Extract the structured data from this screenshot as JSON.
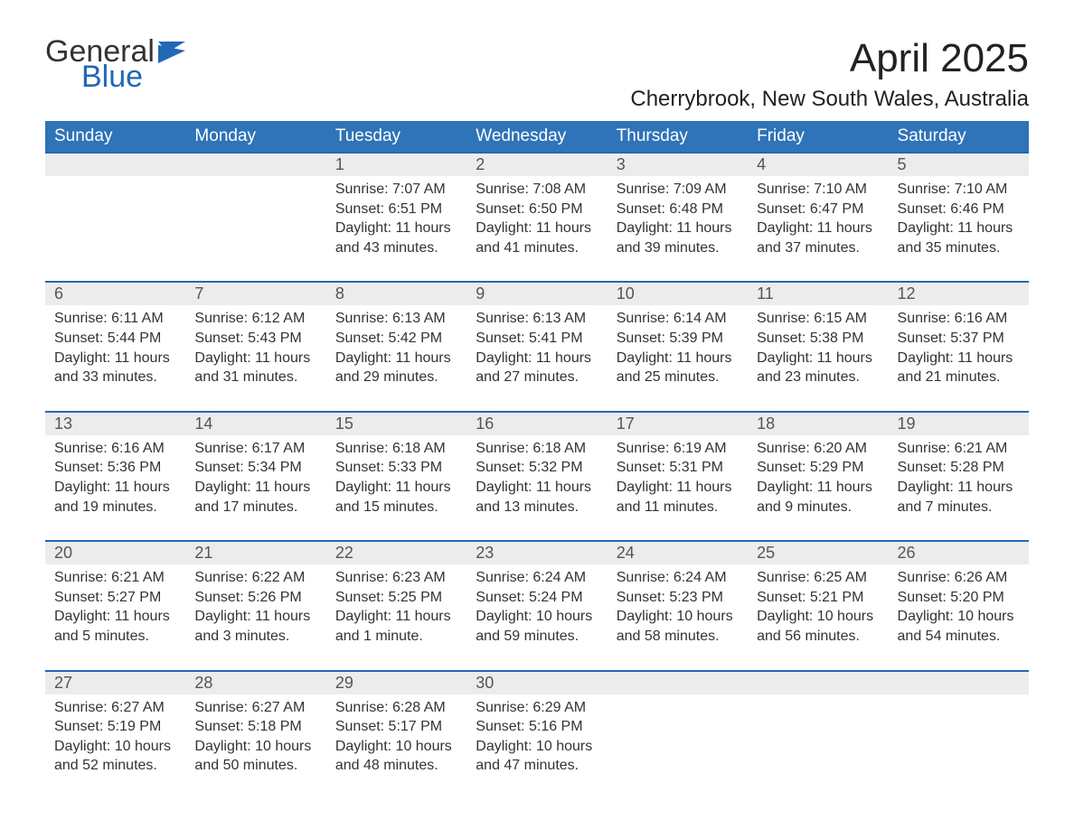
{
  "logo": {
    "general": "General",
    "blue": "Blue"
  },
  "title": "April 2025",
  "subtitle": "Cherrybrook, New South Wales, Australia",
  "colors": {
    "header_bg": "#2f73b8",
    "header_text": "#ffffff",
    "daynum_bg": "#ececec",
    "border": "#2168b5",
    "logo_accent": "#2168b5"
  },
  "day_headers": [
    "Sunday",
    "Monday",
    "Tuesday",
    "Wednesday",
    "Thursday",
    "Friday",
    "Saturday"
  ],
  "weeks": [
    [
      null,
      null,
      {
        "n": "1",
        "sr": "7:07 AM",
        "ss": "6:51 PM",
        "dl": "11 hours and 43 minutes."
      },
      {
        "n": "2",
        "sr": "7:08 AM",
        "ss": "6:50 PM",
        "dl": "11 hours and 41 minutes."
      },
      {
        "n": "3",
        "sr": "7:09 AM",
        "ss": "6:48 PM",
        "dl": "11 hours and 39 minutes."
      },
      {
        "n": "4",
        "sr": "7:10 AM",
        "ss": "6:47 PM",
        "dl": "11 hours and 37 minutes."
      },
      {
        "n": "5",
        "sr": "7:10 AM",
        "ss": "6:46 PM",
        "dl": "11 hours and 35 minutes."
      }
    ],
    [
      {
        "n": "6",
        "sr": "6:11 AM",
        "ss": "5:44 PM",
        "dl": "11 hours and 33 minutes."
      },
      {
        "n": "7",
        "sr": "6:12 AM",
        "ss": "5:43 PM",
        "dl": "11 hours and 31 minutes."
      },
      {
        "n": "8",
        "sr": "6:13 AM",
        "ss": "5:42 PM",
        "dl": "11 hours and 29 minutes."
      },
      {
        "n": "9",
        "sr": "6:13 AM",
        "ss": "5:41 PM",
        "dl": "11 hours and 27 minutes."
      },
      {
        "n": "10",
        "sr": "6:14 AM",
        "ss": "5:39 PM",
        "dl": "11 hours and 25 minutes."
      },
      {
        "n": "11",
        "sr": "6:15 AM",
        "ss": "5:38 PM",
        "dl": "11 hours and 23 minutes."
      },
      {
        "n": "12",
        "sr": "6:16 AM",
        "ss": "5:37 PM",
        "dl": "11 hours and 21 minutes."
      }
    ],
    [
      {
        "n": "13",
        "sr": "6:16 AM",
        "ss": "5:36 PM",
        "dl": "11 hours and 19 minutes."
      },
      {
        "n": "14",
        "sr": "6:17 AM",
        "ss": "5:34 PM",
        "dl": "11 hours and 17 minutes."
      },
      {
        "n": "15",
        "sr": "6:18 AM",
        "ss": "5:33 PM",
        "dl": "11 hours and 15 minutes."
      },
      {
        "n": "16",
        "sr": "6:18 AM",
        "ss": "5:32 PM",
        "dl": "11 hours and 13 minutes."
      },
      {
        "n": "17",
        "sr": "6:19 AM",
        "ss": "5:31 PM",
        "dl": "11 hours and 11 minutes."
      },
      {
        "n": "18",
        "sr": "6:20 AM",
        "ss": "5:29 PM",
        "dl": "11 hours and 9 minutes."
      },
      {
        "n": "19",
        "sr": "6:21 AM",
        "ss": "5:28 PM",
        "dl": "11 hours and 7 minutes."
      }
    ],
    [
      {
        "n": "20",
        "sr": "6:21 AM",
        "ss": "5:27 PM",
        "dl": "11 hours and 5 minutes."
      },
      {
        "n": "21",
        "sr": "6:22 AM",
        "ss": "5:26 PM",
        "dl": "11 hours and 3 minutes."
      },
      {
        "n": "22",
        "sr": "6:23 AM",
        "ss": "5:25 PM",
        "dl": "11 hours and 1 minute."
      },
      {
        "n": "23",
        "sr": "6:24 AM",
        "ss": "5:24 PM",
        "dl": "10 hours and 59 minutes."
      },
      {
        "n": "24",
        "sr": "6:24 AM",
        "ss": "5:23 PM",
        "dl": "10 hours and 58 minutes."
      },
      {
        "n": "25",
        "sr": "6:25 AM",
        "ss": "5:21 PM",
        "dl": "10 hours and 56 minutes."
      },
      {
        "n": "26",
        "sr": "6:26 AM",
        "ss": "5:20 PM",
        "dl": "10 hours and 54 minutes."
      }
    ],
    [
      {
        "n": "27",
        "sr": "6:27 AM",
        "ss": "5:19 PM",
        "dl": "10 hours and 52 minutes."
      },
      {
        "n": "28",
        "sr": "6:27 AM",
        "ss": "5:18 PM",
        "dl": "10 hours and 50 minutes."
      },
      {
        "n": "29",
        "sr": "6:28 AM",
        "ss": "5:17 PM",
        "dl": "10 hours and 48 minutes."
      },
      {
        "n": "30",
        "sr": "6:29 AM",
        "ss": "5:16 PM",
        "dl": "10 hours and 47 minutes."
      },
      null,
      null,
      null
    ]
  ],
  "labels": {
    "sunrise": "Sunrise: ",
    "sunset": "Sunset: ",
    "daylight": "Daylight: "
  }
}
